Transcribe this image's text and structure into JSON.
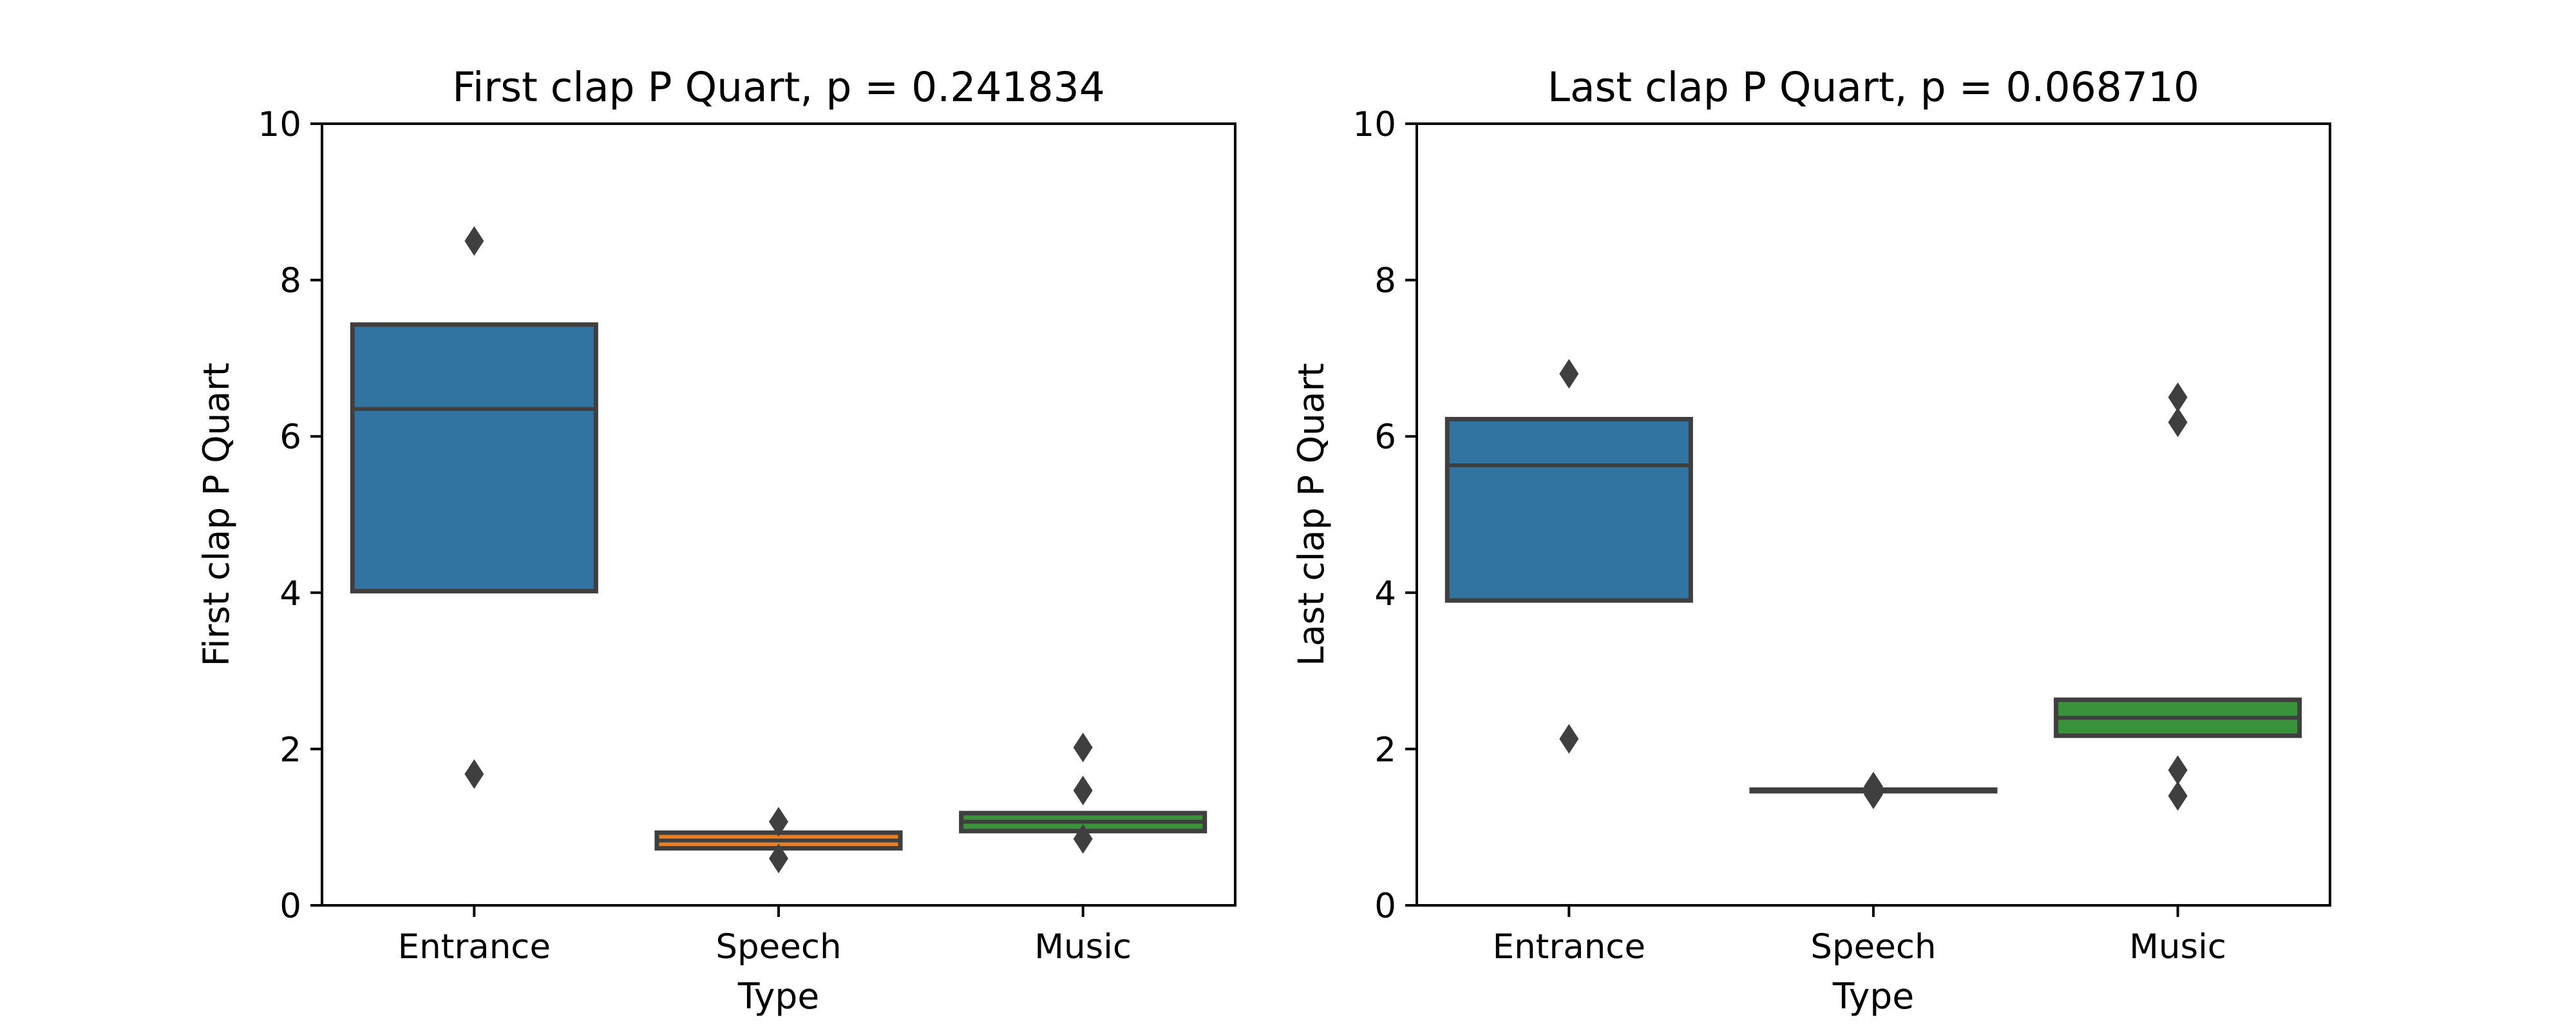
{
  "chart_data": [
    {
      "type": "boxen",
      "title": "First clap P Quart, p = 0.241834",
      "xlabel": "Type",
      "ylabel": "First clap P Quart",
      "ylim": [
        0,
        10
      ],
      "yticks": [
        "0",
        "2",
        "4",
        "6",
        "8",
        "10"
      ],
      "categories": [
        "Entrance",
        "Speech",
        "Music"
      ],
      "colors": [
        "#3274a1",
        "#e1812c",
        "#3a923a"
      ],
      "boxes": [
        {
          "category": "Entrance",
          "lower": 4.02,
          "median": 6.35,
          "upper": 7.43,
          "outliers": [
            8.5,
            1.68
          ]
        },
        {
          "category": "Speech",
          "lower": 0.73,
          "median": 0.83,
          "upper": 0.93,
          "outliers": [
            1.07,
            0.6
          ]
        },
        {
          "category": "Music",
          "lower": 0.95,
          "median": 1.07,
          "upper": 1.18,
          "outliers": [
            2.02,
            1.47,
            0.85
          ]
        }
      ]
    },
    {
      "type": "boxen",
      "title": "Last clap P Quart, p = 0.068710",
      "xlabel": "Type",
      "ylabel": "Last clap P Quart",
      "ylim": [
        0,
        10
      ],
      "yticks": [
        "0",
        "2",
        "4",
        "6",
        "8",
        "10"
      ],
      "categories": [
        "Entrance",
        "Speech",
        "Music"
      ],
      "colors": [
        "#3274a1",
        "#e1812c",
        "#3a923a"
      ],
      "boxes": [
        {
          "category": "Entrance",
          "lower": 3.9,
          "median": 5.63,
          "upper": 6.22,
          "outliers": [
            6.8,
            2.13
          ]
        },
        {
          "category": "Speech",
          "lower": 1.46,
          "median": 1.47,
          "upper": 1.48,
          "outliers": [
            1.52,
            1.42
          ]
        },
        {
          "category": "Music",
          "lower": 2.17,
          "median": 2.4,
          "upper": 2.63,
          "outliers": [
            6.5,
            6.18,
            1.73,
            1.4
          ]
        }
      ]
    }
  ]
}
